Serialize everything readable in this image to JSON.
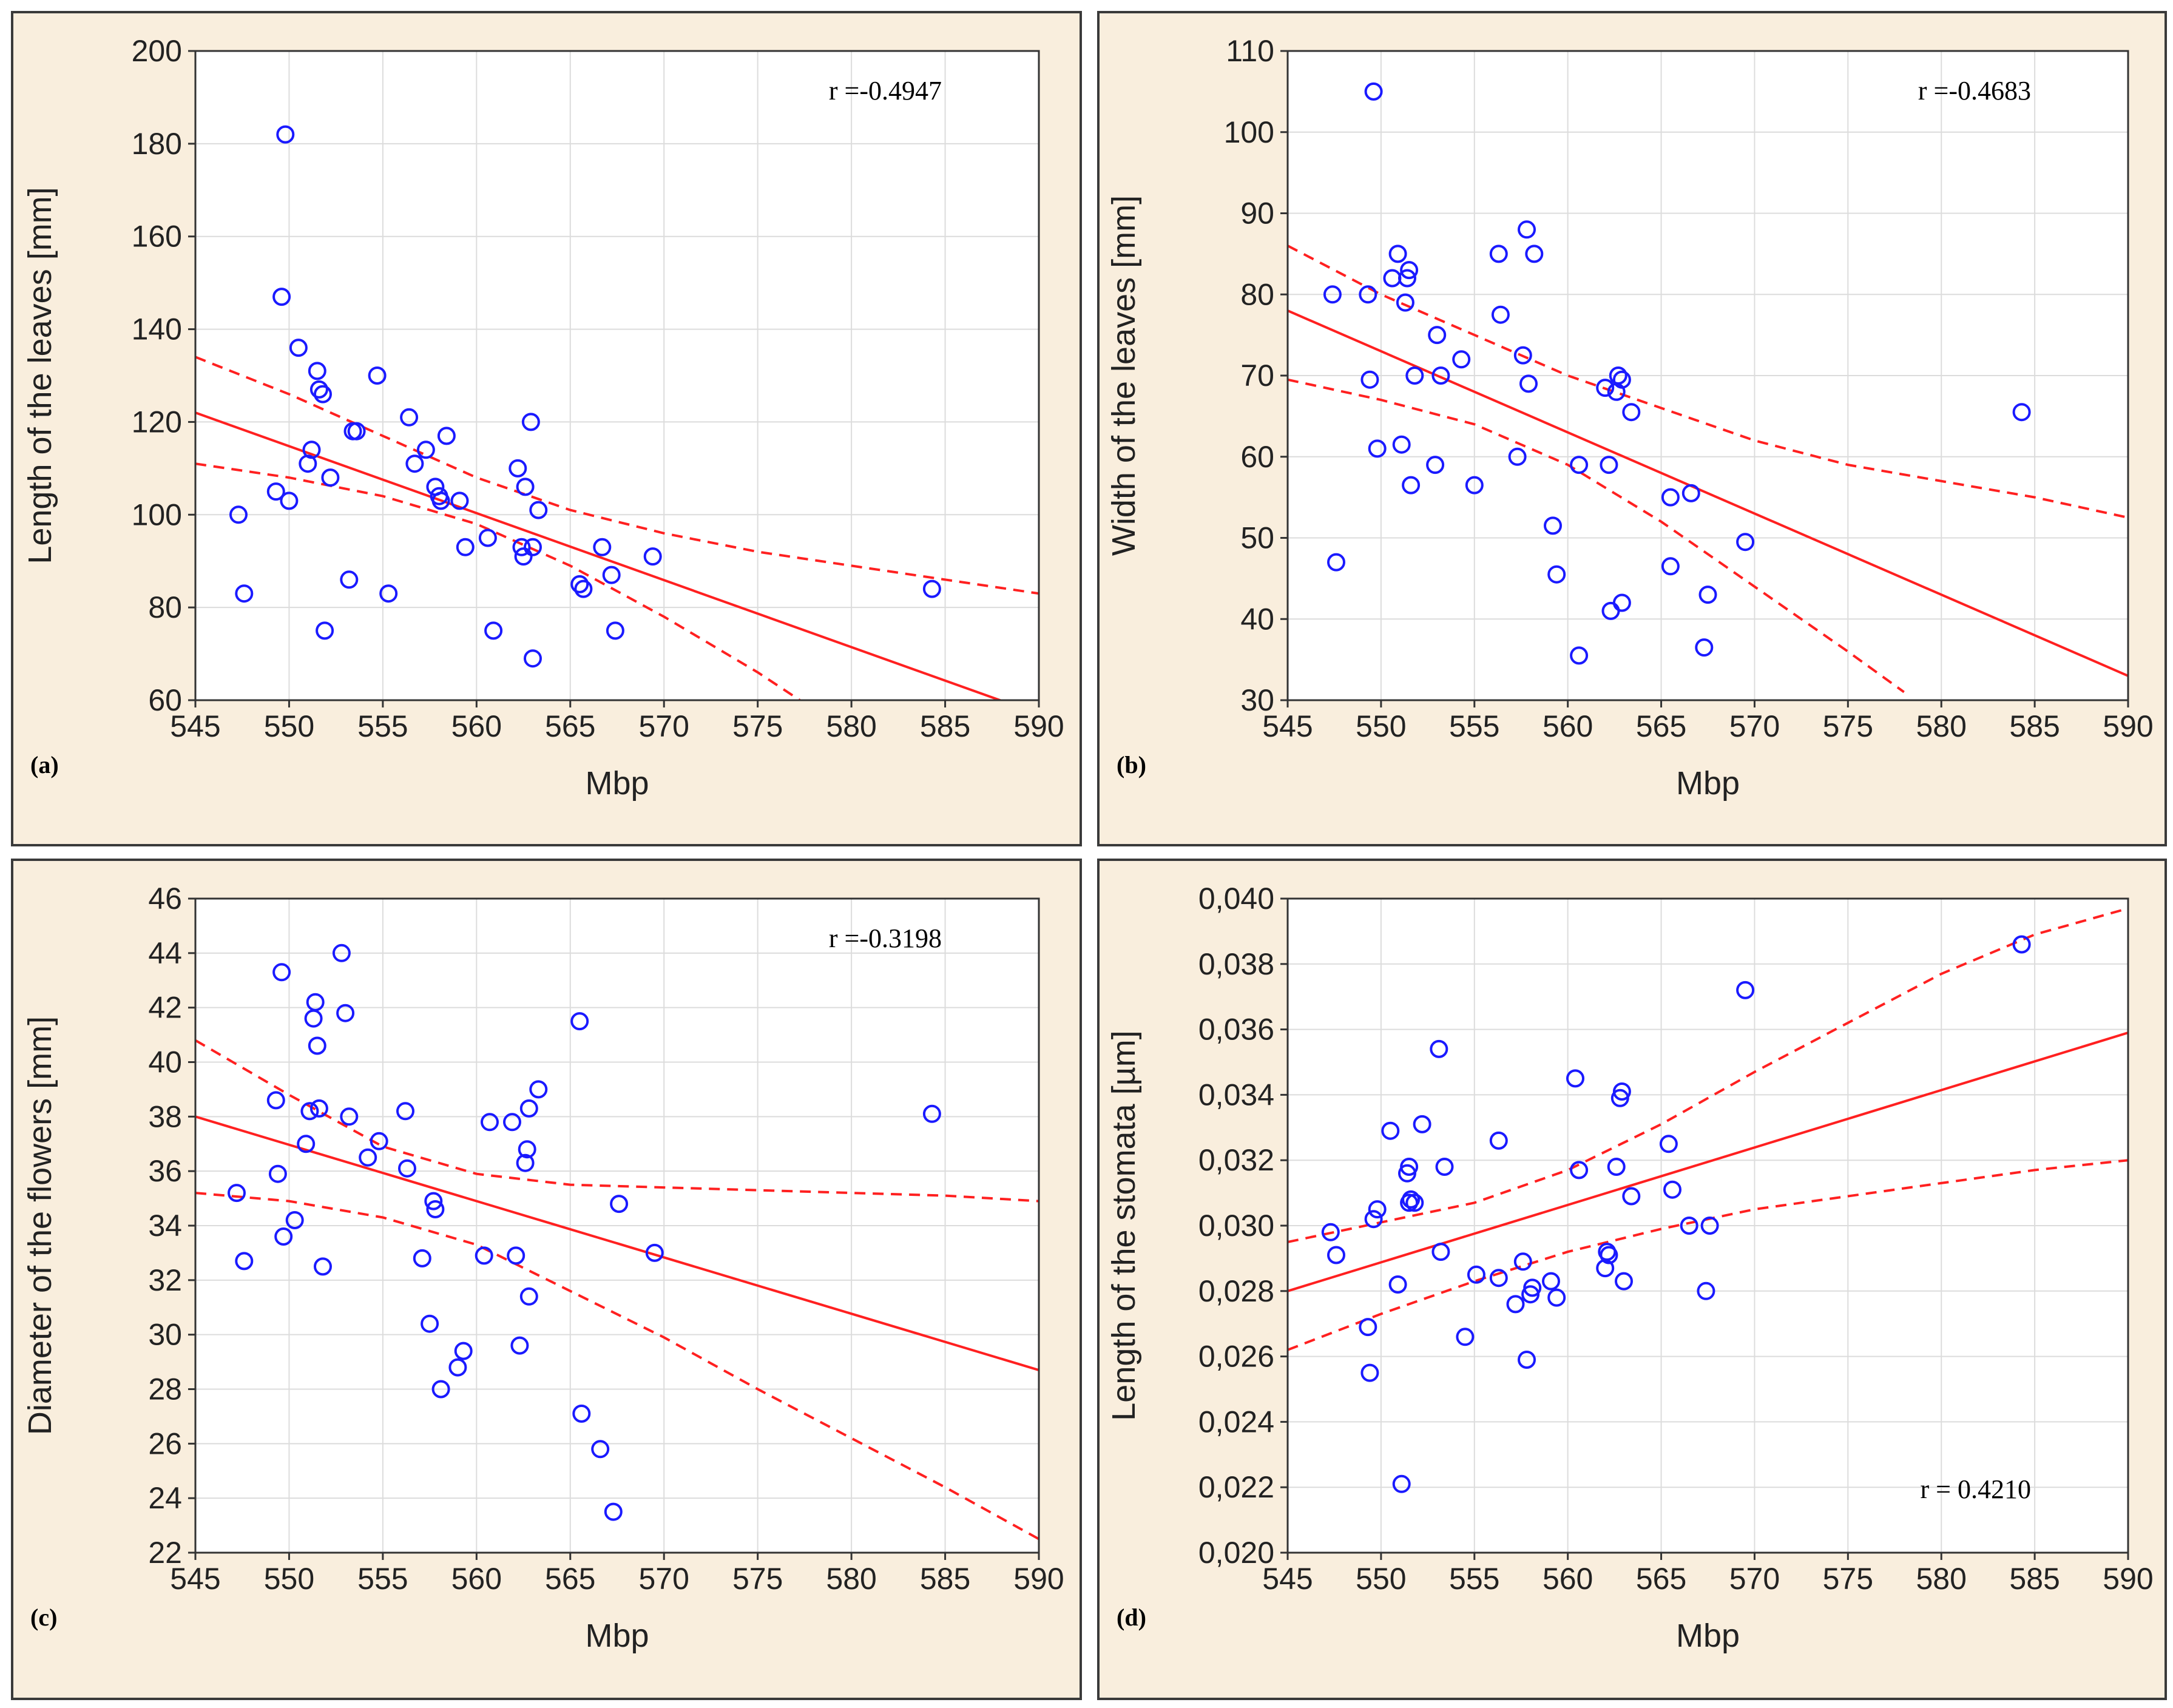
{
  "figure": {
    "accent_point_color": "#1a1aff",
    "fit_line_color": "#ff2020",
    "panel_bg": "#f9eedd"
  },
  "chart_data": [
    {
      "type": "scatter",
      "panel_label": "(a)",
      "xlabel": "Mbp",
      "ylabel": "Length of the leaves [mm]",
      "xlim": [
        545,
        590
      ],
      "ylim": [
        60,
        200
      ],
      "xticks": [
        545,
        550,
        555,
        560,
        565,
        570,
        575,
        580,
        585,
        590
      ],
      "yticks": [
        60,
        80,
        100,
        120,
        140,
        160,
        180,
        200
      ],
      "annotation": "r =-0.4947",
      "annotation_pos": "top-right",
      "fit": {
        "x0": 545,
        "y0": 122,
        "x1": 590,
        "y1": 57
      },
      "ci_upper": [
        [
          545,
          134
        ],
        [
          550,
          126
        ],
        [
          555,
          117
        ],
        [
          560,
          108
        ],
        [
          565,
          101
        ],
        [
          570,
          96
        ],
        [
          575,
          92
        ],
        [
          580,
          89
        ],
        [
          585,
          86
        ],
        [
          590,
          83
        ]
      ],
      "ci_lower": [
        [
          545,
          111
        ],
        [
          550,
          108
        ],
        [
          555,
          104
        ],
        [
          560,
          98
        ],
        [
          565,
          89
        ],
        [
          570,
          78
        ],
        [
          575,
          66
        ],
        [
          578,
          58
        ]
      ],
      "points": [
        [
          547.3,
          100
        ],
        [
          547.6,
          83
        ],
        [
          549.3,
          105
        ],
        [
          549.6,
          147
        ],
        [
          549.8,
          182
        ],
        [
          550.0,
          103
        ],
        [
          550.5,
          136
        ],
        [
          551.0,
          111
        ],
        [
          551.2,
          114
        ],
        [
          551.5,
          131
        ],
        [
          551.6,
          127
        ],
        [
          551.8,
          126
        ],
        [
          551.9,
          75
        ],
        [
          552.2,
          108
        ],
        [
          553.2,
          86
        ],
        [
          553.4,
          118
        ],
        [
          553.6,
          118
        ],
        [
          554.7,
          130
        ],
        [
          555.3,
          83
        ],
        [
          556.4,
          121
        ],
        [
          556.7,
          111
        ],
        [
          557.3,
          114
        ],
        [
          557.8,
          106
        ],
        [
          558.0,
          104
        ],
        [
          558.1,
          103
        ],
        [
          558.4,
          117
        ],
        [
          559.1,
          103
        ],
        [
          559.4,
          93
        ],
        [
          560.6,
          95
        ],
        [
          560.9,
          75
        ],
        [
          562.2,
          110
        ],
        [
          562.4,
          93
        ],
        [
          562.5,
          91
        ],
        [
          562.6,
          106
        ],
        [
          562.9,
          120
        ],
        [
          563.0,
          93
        ],
        [
          563.3,
          101
        ],
        [
          563.0,
          69
        ],
        [
          565.5,
          85
        ],
        [
          565.7,
          84
        ],
        [
          566.7,
          93
        ],
        [
          567.2,
          87
        ],
        [
          567.4,
          75
        ],
        [
          569.4,
          91
        ],
        [
          584.3,
          84
        ]
      ]
    },
    {
      "type": "scatter",
      "panel_label": "(b)",
      "xlabel": "Mbp",
      "ylabel": "Width of the leaves [mm]",
      "xlim": [
        545,
        590
      ],
      "ylim": [
        30,
        110
      ],
      "xticks": [
        545,
        550,
        555,
        560,
        565,
        570,
        575,
        580,
        585,
        590
      ],
      "yticks": [
        30,
        40,
        50,
        60,
        70,
        80,
        90,
        100,
        110
      ],
      "annotation": "r =-0.4683",
      "annotation_pos": "top-right",
      "fit": {
        "x0": 545,
        "y0": 78,
        "x1": 590,
        "y1": 33
      },
      "ci_upper": [
        [
          545,
          86
        ],
        [
          550,
          80
        ],
        [
          555,
          75
        ],
        [
          560,
          70
        ],
        [
          565,
          66
        ],
        [
          570,
          62
        ],
        [
          575,
          59
        ],
        [
          580,
          57
        ],
        [
          585,
          55
        ],
        [
          590,
          52.5
        ]
      ],
      "ci_lower": [
        [
          545,
          69.5
        ],
        [
          550,
          67
        ],
        [
          555,
          64
        ],
        [
          560,
          59
        ],
        [
          565,
          52
        ],
        [
          570,
          44
        ],
        [
          575,
          36
        ],
        [
          578,
          31
        ]
      ],
      "points": [
        [
          547.4,
          80
        ],
        [
          547.6,
          47
        ],
        [
          549.3,
          80
        ],
        [
          549.4,
          69.5
        ],
        [
          549.6,
          105
        ],
        [
          549.8,
          61
        ],
        [
          550.6,
          82
        ],
        [
          550.9,
          85
        ],
        [
          551.1,
          61.5
        ],
        [
          551.3,
          79
        ],
        [
          551.4,
          82
        ],
        [
          551.5,
          83
        ],
        [
          551.6,
          56.5
        ],
        [
          551.8,
          70
        ],
        [
          552.9,
          59
        ],
        [
          553.0,
          75
        ],
        [
          553.2,
          70
        ],
        [
          554.3,
          72
        ],
        [
          555.0,
          56.5
        ],
        [
          556.3,
          85
        ],
        [
          556.4,
          77.5
        ],
        [
          557.3,
          60
        ],
        [
          557.6,
          72.5
        ],
        [
          557.8,
          88
        ],
        [
          557.9,
          69
        ],
        [
          558.2,
          85
        ],
        [
          559.2,
          51.5
        ],
        [
          559.4,
          45.5
        ],
        [
          560.6,
          59
        ],
        [
          560.6,
          35.5
        ],
        [
          562.0,
          68.5
        ],
        [
          562.2,
          59
        ],
        [
          562.3,
          41
        ],
        [
          562.6,
          68
        ],
        [
          562.7,
          70
        ],
        [
          562.9,
          42
        ],
        [
          562.9,
          69.5
        ],
        [
          563.4,
          65.5
        ],
        [
          565.5,
          55
        ],
        [
          565.5,
          46.5
        ],
        [
          566.6,
          55.5
        ],
        [
          567.3,
          36.5
        ],
        [
          567.5,
          43
        ],
        [
          569.5,
          49.5
        ],
        [
          584.3,
          65.5
        ]
      ]
    },
    {
      "type": "scatter",
      "panel_label": "(c)",
      "xlabel": "Mbp",
      "ylabel": "Diameter of the flowers [mm]",
      "xlim": [
        545,
        590
      ],
      "ylim": [
        22,
        46
      ],
      "xticks": [
        545,
        550,
        555,
        560,
        565,
        570,
        575,
        580,
        585,
        590
      ],
      "yticks": [
        22,
        24,
        26,
        28,
        30,
        32,
        34,
        36,
        38,
        40,
        42,
        44,
        46
      ],
      "annotation": "r =-0.3198",
      "annotation_pos": "top-right",
      "fit": {
        "x0": 545,
        "y0": 38,
        "x1": 590,
        "y1": 28.7
      },
      "ci_upper": [
        [
          545,
          40.8
        ],
        [
          550,
          38.8
        ],
        [
          555,
          36.9
        ],
        [
          560,
          35.9
        ],
        [
          565,
          35.5
        ],
        [
          570,
          35.4
        ],
        [
          575,
          35.3
        ],
        [
          580,
          35.2
        ],
        [
          585,
          35.1
        ],
        [
          590,
          34.9
        ]
      ],
      "ci_lower": [
        [
          545,
          35.2
        ],
        [
          550,
          34.9
        ],
        [
          555,
          34.3
        ],
        [
          560,
          33.3
        ],
        [
          565,
          31.6
        ],
        [
          570,
          29.9
        ],
        [
          575,
          28
        ],
        [
          580,
          26.2
        ],
        [
          585,
          24.4
        ],
        [
          590,
          22.5
        ]
      ],
      "points": [
        [
          547.2,
          35.2
        ],
        [
          547.6,
          32.7
        ],
        [
          549.3,
          38.6
        ],
        [
          549.4,
          35.9
        ],
        [
          549.6,
          43.3
        ],
        [
          549.7,
          33.6
        ],
        [
          550.3,
          34.2
        ],
        [
          550.9,
          37.0
        ],
        [
          551.1,
          38.2
        ],
        [
          551.3,
          41.6
        ],
        [
          551.4,
          42.2
        ],
        [
          551.5,
          40.6
        ],
        [
          551.6,
          38.3
        ],
        [
          551.8,
          32.5
        ],
        [
          552.8,
          44.0
        ],
        [
          553.0,
          41.8
        ],
        [
          553.2,
          38.0
        ],
        [
          554.2,
          36.5
        ],
        [
          554.8,
          37.1
        ],
        [
          556.2,
          38.2
        ],
        [
          556.3,
          36.1
        ],
        [
          557.1,
          32.8
        ],
        [
          557.5,
          30.4
        ],
        [
          557.7,
          34.9
        ],
        [
          557.8,
          34.6
        ],
        [
          558.1,
          28.0
        ],
        [
          559.0,
          28.8
        ],
        [
          559.3,
          29.4
        ],
        [
          560.4,
          32.9
        ],
        [
          560.7,
          37.8
        ],
        [
          561.9,
          37.8
        ],
        [
          562.1,
          32.9
        ],
        [
          562.3,
          29.6
        ],
        [
          562.6,
          36.3
        ],
        [
          562.7,
          36.8
        ],
        [
          562.8,
          38.3
        ],
        [
          562.8,
          31.4
        ],
        [
          563.3,
          39.0
        ],
        [
          565.5,
          41.5
        ],
        [
          565.6,
          27.1
        ],
        [
          566.6,
          25.8
        ],
        [
          567.3,
          23.5
        ],
        [
          567.6,
          34.8
        ],
        [
          569.5,
          33.0
        ],
        [
          584.3,
          38.1
        ]
      ]
    },
    {
      "type": "scatter",
      "panel_label": "(d)",
      "xlabel": "Mbp",
      "ylabel": "Length of the stomata [µm]",
      "xlim": [
        545,
        590
      ],
      "ylim": [
        0.02,
        0.04
      ],
      "xticks": [
        545,
        550,
        555,
        560,
        565,
        570,
        575,
        580,
        585,
        590
      ],
      "yticks": [
        0.02,
        0.022,
        0.024,
        0.026,
        0.028,
        0.03,
        0.032,
        0.034,
        0.036,
        0.038,
        0.04
      ],
      "ytick_labels": [
        "0,020",
        "0,022",
        "0,024",
        "0,026",
        "0,028",
        "0,030",
        "0,032",
        "0,034",
        "0,036",
        "0,038",
        "0,040"
      ],
      "annotation": "r = 0.4210",
      "annotation_pos": "bottom-right",
      "fit": {
        "x0": 545,
        "y0": 0.028,
        "x1": 590,
        "y1": 0.0359
      },
      "ci_upper": [
        [
          545,
          0.0295
        ],
        [
          550,
          0.0301
        ],
        [
          555,
          0.0307
        ],
        [
          560,
          0.0317
        ],
        [
          565,
          0.0331
        ],
        [
          570,
          0.0347
        ],
        [
          575,
          0.0362
        ],
        [
          580,
          0.0377
        ],
        [
          585,
          0.0389
        ],
        [
          590,
          0.0397
        ]
      ],
      "ci_lower": [
        [
          545,
          0.0262
        ],
        [
          550,
          0.0273
        ],
        [
          555,
          0.0283
        ],
        [
          560,
          0.0292
        ],
        [
          565,
          0.0299
        ],
        [
          570,
          0.0305
        ],
        [
          575,
          0.0309
        ],
        [
          580,
          0.0313
        ],
        [
          585,
          0.0317
        ],
        [
          590,
          0.032
        ]
      ],
      "points": [
        [
          547.3,
          0.0298
        ],
        [
          547.6,
          0.0291
        ],
        [
          549.3,
          0.0269
        ],
        [
          549.4,
          0.0255
        ],
        [
          549.6,
          0.0302
        ],
        [
          549.8,
          0.0305
        ],
        [
          550.5,
          0.0329
        ],
        [
          550.9,
          0.0282
        ],
        [
          551.1,
          0.0221
        ],
        [
          551.4,
          0.0316
        ],
        [
          551.5,
          0.0318
        ],
        [
          551.5,
          0.0307
        ],
        [
          551.6,
          0.0308
        ],
        [
          551.8,
          0.0307
        ],
        [
          552.2,
          0.0331
        ],
        [
          553.1,
          0.0354
        ],
        [
          553.2,
          0.0292
        ],
        [
          553.4,
          0.0318
        ],
        [
          554.5,
          0.0266
        ],
        [
          555.1,
          0.0285
        ],
        [
          556.3,
          0.0284
        ],
        [
          556.3,
          0.0326
        ],
        [
          557.2,
          0.0276
        ],
        [
          557.6,
          0.0289
        ],
        [
          557.8,
          0.0259
        ],
        [
          558.0,
          0.0279
        ],
        [
          558.1,
          0.0281
        ],
        [
          559.1,
          0.0283
        ],
        [
          559.4,
          0.0278
        ],
        [
          560.4,
          0.0345
        ],
        [
          560.6,
          0.0317
        ],
        [
          562.0,
          0.0287
        ],
        [
          562.1,
          0.0292
        ],
        [
          562.2,
          0.0291
        ],
        [
          562.6,
          0.0318
        ],
        [
          562.8,
          0.0339
        ],
        [
          562.9,
          0.0341
        ],
        [
          563.0,
          0.0283
        ],
        [
          563.4,
          0.0309
        ],
        [
          565.4,
          0.0325
        ],
        [
          565.6,
          0.0311
        ],
        [
          566.5,
          0.03
        ],
        [
          567.4,
          0.028
        ],
        [
          567.6,
          0.03
        ],
        [
          569.5,
          0.0372
        ],
        [
          584.3,
          0.0386
        ]
      ]
    }
  ]
}
